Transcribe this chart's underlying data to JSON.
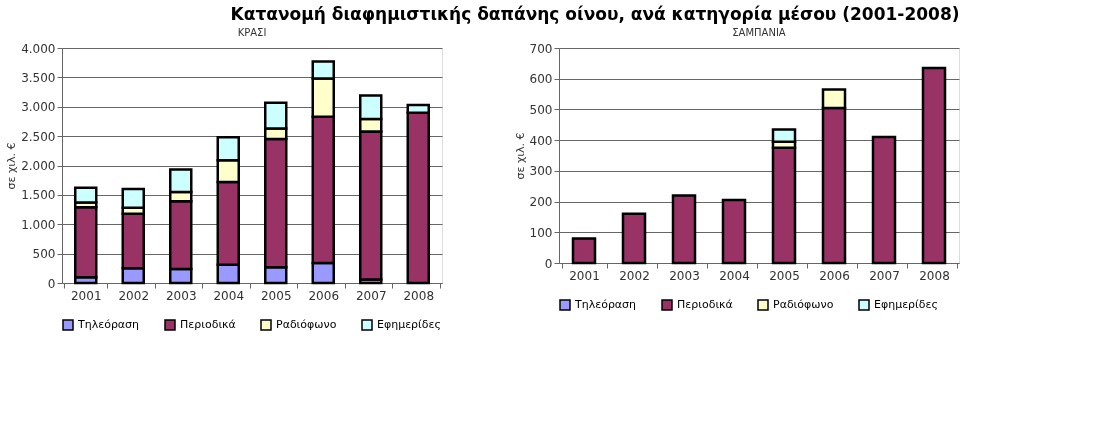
{
  "chart_data": [
    {
      "type": "bar",
      "title": "ΚΡΑΣΙ",
      "ylabel": "σε χιλ. €",
      "annotations": [
        "Κατανομή διαφημιστικής δαπάνης οίνου, ανά κατηγορία μέσου (2001-2008)"
      ],
      "categories": [
        "2001",
        "2002",
        "2003",
        "2004",
        "2005",
        "2006",
        "2007",
        "2008"
      ],
      "stacked": true,
      "series": [
        {
          "name": "Τηλεόραση",
          "color": "#9999ff",
          "values": [
            100,
            250,
            240,
            310,
            270,
            340,
            60,
            null
          ]
        },
        {
          "name": "Περιοδικά",
          "color": "#993366",
          "values": [
            1190,
            930,
            1150,
            1410,
            2180,
            2490,
            2520,
            2900
          ]
        },
        {
          "name": "Ραδιόφωνο",
          "color": "#ffffcc",
          "values": [
            80,
            100,
            160,
            370,
            180,
            650,
            210,
            null
          ]
        },
        {
          "name": "Εφημερίδες",
          "color": "#ccffff",
          "values": [
            250,
            320,
            380,
            390,
            440,
            290,
            400,
            130
          ]
        }
      ],
      "ylim": [
        0,
        4000
      ],
      "yticks": [
        0,
        {
          "value": 500,
          "label": "500"
        },
        {
          "value": 1000,
          "label": "1.000"
        },
        {
          "value": 1500,
          "label": "1.500"
        },
        {
          "value": 2000,
          "label": "2.000"
        },
        {
          "value": 2500,
          "label": "2.500"
        },
        {
          "value": 3000,
          "label": "3.000"
        },
        {
          "value": 3500,
          "label": "3.500"
        },
        {
          "value": 4000,
          "label": "4.000"
        }
      ],
      "grid": "y",
      "legend": "bottom"
    },
    {
      "type": "bar",
      "title": "ΣΑΜΠΑΝΙΑ",
      "ylabel": "σε χιλ. €",
      "categories": [
        "2001",
        "2002",
        "2003",
        "2004",
        "2005",
        "2006",
        "2007",
        "2008"
      ],
      "stacked": true,
      "series": [
        {
          "name": "Τηλεόραση",
          "color": "#9999ff",
          "values": [
            null,
            null,
            null,
            null,
            null,
            null,
            null,
            null
          ]
        },
        {
          "name": "Περιοδικά",
          "color": "#993366",
          "values": [
            80,
            160,
            220,
            205,
            375,
            505,
            410,
            635
          ]
        },
        {
          "name": "Ραδιόφωνο",
          "color": "#ffffcc",
          "values": [
            null,
            null,
            null,
            null,
            20,
            60,
            null,
            null
          ]
        },
        {
          "name": "Εφημερίδες",
          "color": "#ccffff",
          "values": [
            null,
            null,
            null,
            null,
            40,
            null,
            null,
            null
          ]
        }
      ],
      "ylim": [
        0,
        700
      ],
      "yticks": [
        0,
        100,
        200,
        300,
        400,
        500,
        600,
        700
      ],
      "grid": "y",
      "legend": "bottom"
    }
  ]
}
